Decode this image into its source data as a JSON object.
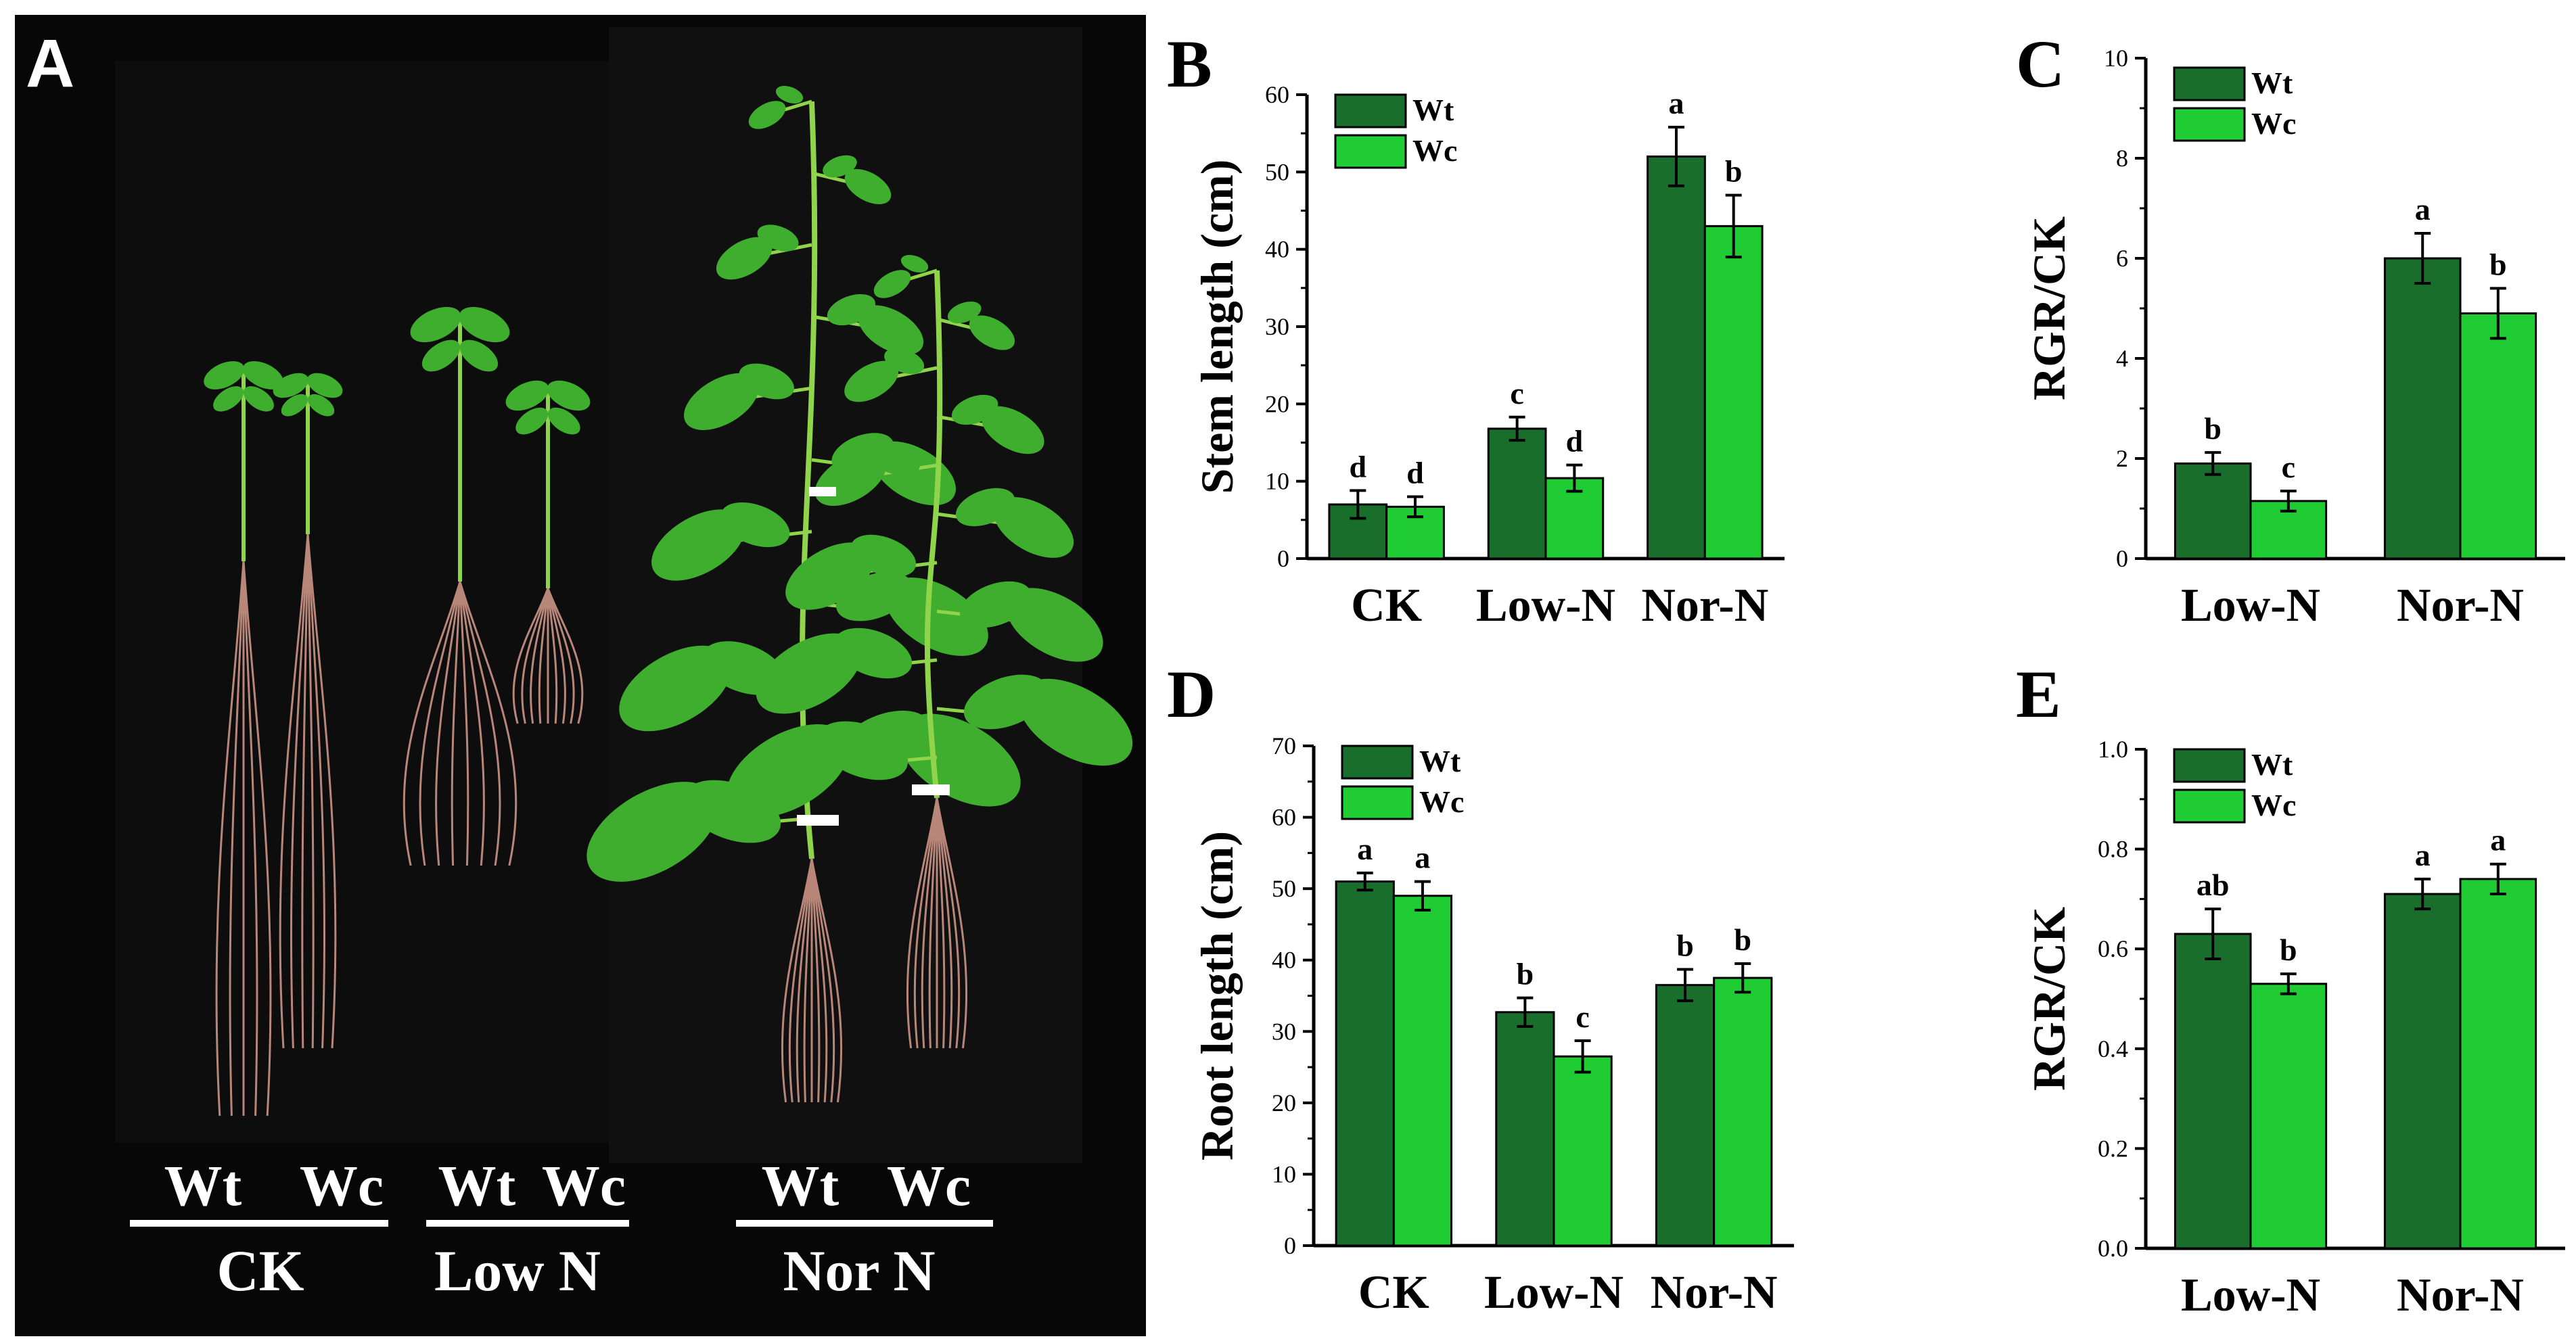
{
  "photo": {
    "panel_label": "A",
    "groups": [
      {
        "name": "CK",
        "samples": [
          "Wt",
          "Wc"
        ]
      },
      {
        "name": "Low N",
        "samples": [
          "Wt",
          "Wc"
        ]
      },
      {
        "name": "Nor N",
        "samples": [
          "Wt",
          "Wc"
        ]
      }
    ]
  },
  "colors": {
    "wt": "#1a6e2c",
    "wc": "#1fcc34",
    "photo_bg": "#070707",
    "stem": "#8fd44a",
    "leaf": "#3fae2e",
    "root": "#b9877a"
  },
  "chart_data": [
    {
      "panel_label": "B",
      "type": "bar",
      "categories": [
        "CK",
        "Low-N",
        "Nor-N"
      ],
      "series": [
        {
          "name": "Wt",
          "values": [
            7,
            16.8,
            52
          ],
          "errors": [
            1.8,
            1.5,
            3.8
          ],
          "letters": [
            "d",
            "c",
            "a"
          ]
        },
        {
          "name": "Wc",
          "values": [
            6.7,
            10.4,
            43
          ],
          "errors": [
            1.3,
            1.7,
            4
          ],
          "letters": [
            "d",
            "d",
            "b"
          ]
        }
      ],
      "ylabel": "Stem length (cm)",
      "ylim": [
        0,
        60
      ],
      "yticks": [
        "0",
        "10",
        "20",
        "30",
        "40",
        "50",
        "60"
      ],
      "legend": "top-left",
      "grid": false
    },
    {
      "panel_label": "C",
      "type": "bar",
      "categories": [
        "Low-N",
        "Nor-N"
      ],
      "series": [
        {
          "name": "Wt",
          "values": [
            1.9,
            6
          ],
          "errors": [
            0.22,
            0.5
          ],
          "letters": [
            "b",
            "a"
          ]
        },
        {
          "name": "Wc",
          "values": [
            1.15,
            4.9
          ],
          "errors": [
            0.2,
            0.5
          ],
          "letters": [
            "c",
            "b"
          ]
        }
      ],
      "ylabel": "RGR/CK",
      "ylim": [
        0,
        10
      ],
      "yticks": [
        "0",
        "2",
        "4",
        "6",
        "8",
        "10"
      ],
      "legend": "top-left",
      "grid": false
    },
    {
      "panel_label": "D",
      "type": "bar",
      "categories": [
        "CK",
        "Low-N",
        "Nor-N"
      ],
      "series": [
        {
          "name": "Wt",
          "values": [
            51,
            32.7,
            36.5
          ],
          "errors": [
            1.2,
            2,
            2.2
          ],
          "letters": [
            "a",
            "b",
            "b"
          ]
        },
        {
          "name": "Wc",
          "values": [
            49,
            26.5,
            37.5
          ],
          "errors": [
            2,
            2.2,
            2
          ],
          "letters": [
            "a",
            "c",
            "b"
          ]
        }
      ],
      "ylabel": "Root length (cm)",
      "ylim": [
        0,
        70
      ],
      "yticks": [
        "0",
        "10",
        "20",
        "30",
        "40",
        "50",
        "60",
        "70"
      ],
      "legend": "top-left",
      "grid": false
    },
    {
      "panel_label": "E",
      "type": "bar",
      "categories": [
        "Low-N",
        "Nor-N"
      ],
      "series": [
        {
          "name": "Wt",
          "values": [
            0.63,
            0.71
          ],
          "errors": [
            0.05,
            0.03
          ],
          "letters": [
            "ab",
            "a"
          ]
        },
        {
          "name": "Wc",
          "values": [
            0.53,
            0.74
          ],
          "errors": [
            0.02,
            0.03
          ],
          "letters": [
            "b",
            "a"
          ]
        }
      ],
      "ylabel": "RGR/CK",
      "ylim": [
        0,
        1.0
      ],
      "yticks": [
        "0.0",
        "0.2",
        "0.4",
        "0.6",
        "0.8",
        "1.0"
      ],
      "legend": "top-left",
      "grid": false
    }
  ]
}
